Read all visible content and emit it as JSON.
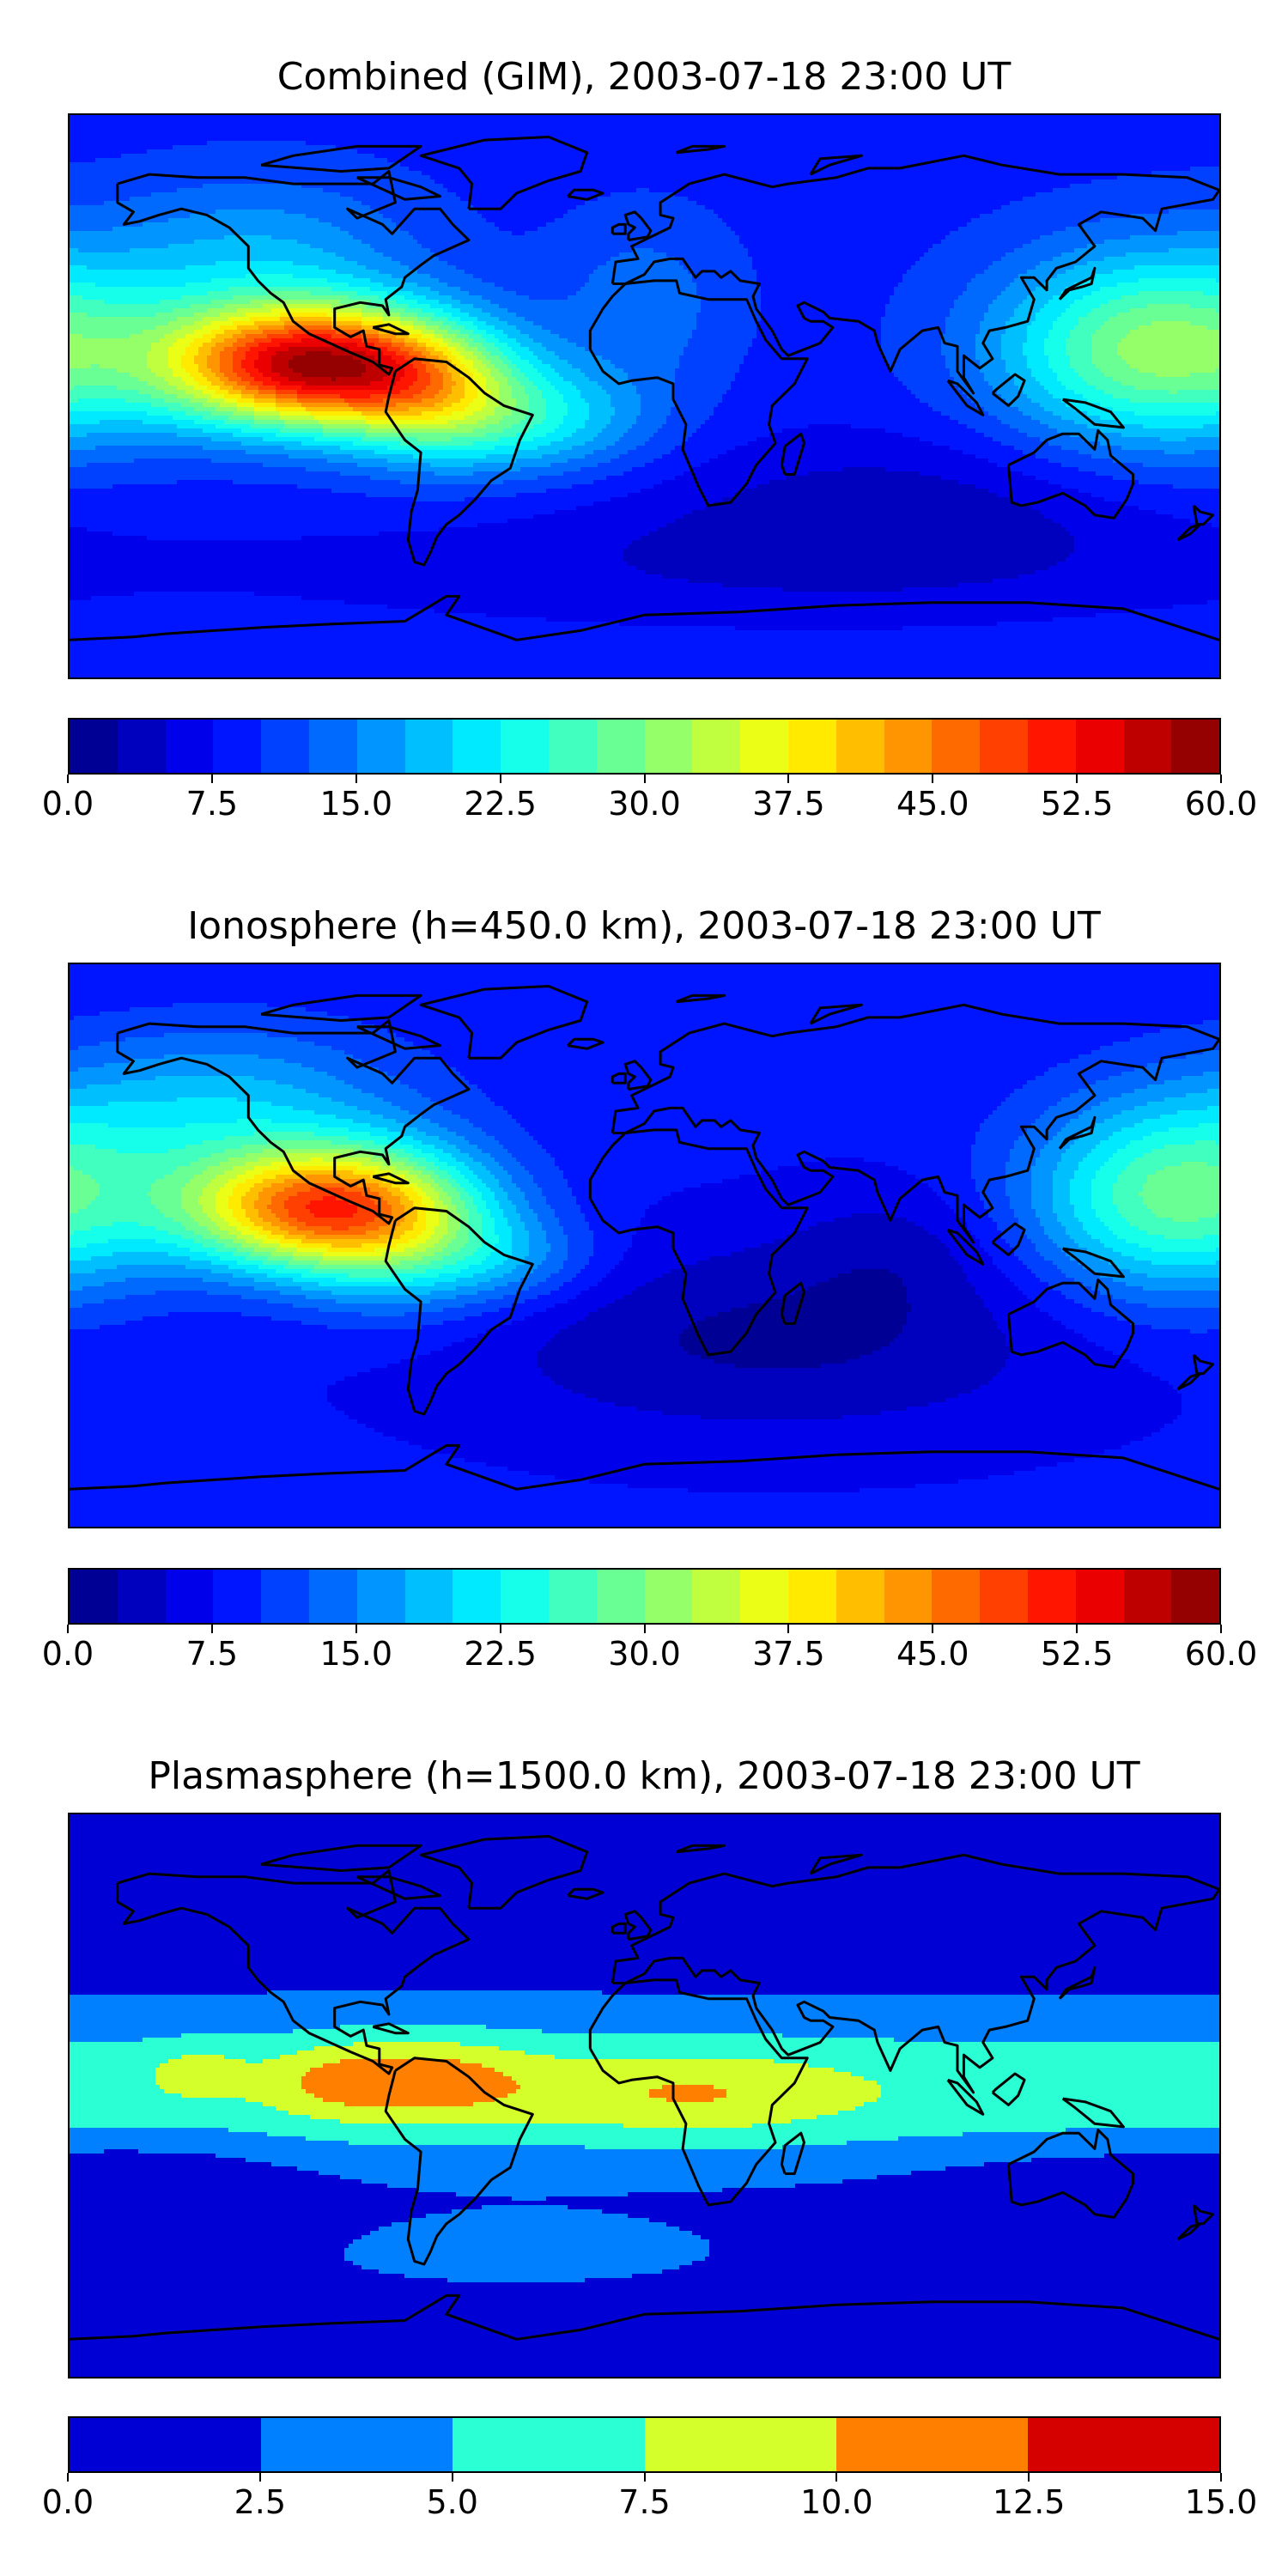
{
  "panels": [
    {
      "title": "Combined (GIM), 2003-07-18 23:00 UT",
      "field": "combined",
      "colorbar": {
        "min": 0,
        "max": 60,
        "levels": 24,
        "tick_labels": [
          "0.0",
          "7.5",
          "15.0",
          "22.5",
          "30.0",
          "37.5",
          "45.0",
          "52.5",
          "60.0"
        ]
      }
    },
    {
      "title": "Ionosphere  (h=450.0 km), 2003-07-18 23:00 UT",
      "field": "ionosphere",
      "colorbar": {
        "min": 0,
        "max": 60,
        "levels": 24,
        "tick_labels": [
          "0.0",
          "7.5",
          "15.0",
          "22.5",
          "30.0",
          "37.5",
          "45.0",
          "52.5",
          "60.0"
        ]
      }
    },
    {
      "title": "Plasmasphere (h=1500.0 km), 2003-07-18 23:00 UT",
      "field": "plasmasphere",
      "colorbar": {
        "min": 0,
        "max": 15,
        "levels": 6,
        "tick_labels": [
          "0.0",
          "2.5",
          "5.0",
          "7.5",
          "10.0",
          "12.5",
          "15.0"
        ]
      }
    }
  ],
  "map": {
    "projection": "equirectangular",
    "coastline_color": "#000000",
    "colormap": "jet"
  }
}
